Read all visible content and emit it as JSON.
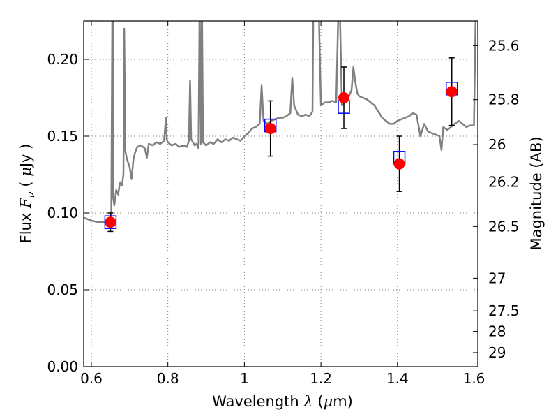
{
  "chart_data": {
    "type": "scatter",
    "xlabel": {
      "prefix": "Wavelength ",
      "symbol": "λ",
      "unit_open": " (",
      "unit_mu": "μ",
      "unit_rest": "m)"
    },
    "ylabel": {
      "prefix": "Flux ",
      "symbol": "F",
      "sub": "ν",
      "unit_open": " ( ",
      "unit_mu": "μ",
      "unit_rest": "Jy )"
    },
    "y2label": "Magnitude (AB)",
    "xlim": [
      0.58,
      1.61
    ],
    "ylim": [
      0.0,
      0.225
    ],
    "grid": true,
    "x_ticks": [
      0.6,
      0.8,
      1.0,
      1.2,
      1.4,
      1.6
    ],
    "x_tick_labels": [
      "0.6",
      "0.8",
      "1",
      "1.2",
      "1.4",
      "1.6"
    ],
    "y_ticks": [
      0.0,
      0.05,
      0.1,
      0.15,
      0.2
    ],
    "y_tick_labels": [
      "0.00",
      "0.05",
      "0.10",
      "0.15",
      "0.20"
    ],
    "y2_ticks": [
      {
        "mag": 25.6,
        "label": "25.6"
      },
      {
        "mag": 25.8,
        "label": "25.8"
      },
      {
        "mag": 26.0,
        "label": "26"
      },
      {
        "mag": 26.2,
        "label": "26.2"
      },
      {
        "mag": 26.5,
        "label": "26.5"
      },
      {
        "mag": 27.0,
        "label": "27"
      },
      {
        "mag": 27.5,
        "label": "27.5"
      },
      {
        "mag": 28.0,
        "label": "28"
      },
      {
        "mag": 29.0,
        "label": "29"
      }
    ],
    "observed": [
      {
        "x": 0.65,
        "y": 0.094,
        "err": 0.006
      },
      {
        "x": 1.068,
        "y": 0.155,
        "err": 0.018
      },
      {
        "x": 1.26,
        "y": 0.175,
        "err": 0.02
      },
      {
        "x": 1.405,
        "y": 0.132,
        "err": 0.018
      },
      {
        "x": 1.542,
        "y": 0.179,
        "err": 0.022
      }
    ],
    "model_points": [
      {
        "x": 0.65,
        "y": 0.094
      },
      {
        "x": 1.068,
        "y": 0.157
      },
      {
        "x": 1.26,
        "y": 0.169
      },
      {
        "x": 1.405,
        "y": 0.136
      },
      {
        "x": 1.542,
        "y": 0.181
      }
    ],
    "spectrum": [
      [
        0.58,
        0.097
      ],
      [
        0.6,
        0.095
      ],
      [
        0.62,
        0.094
      ],
      [
        0.64,
        0.094
      ],
      [
        0.65,
        0.093
      ],
      [
        0.652,
        0.092
      ],
      [
        0.655,
        0.24
      ],
      [
        0.656,
        0.24
      ],
      [
        0.657,
        0.11
      ],
      [
        0.66,
        0.105
      ],
      [
        0.665,
        0.115
      ],
      [
        0.67,
        0.112
      ],
      [
        0.675,
        0.12
      ],
      [
        0.68,
        0.118
      ],
      [
        0.684,
        0.125
      ],
      [
        0.686,
        0.22
      ],
      [
        0.689,
        0.14
      ],
      [
        0.693,
        0.135
      ],
      [
        0.7,
        0.13
      ],
      [
        0.705,
        0.122
      ],
      [
        0.71,
        0.135
      ],
      [
        0.715,
        0.14
      ],
      [
        0.72,
        0.143
      ],
      [
        0.73,
        0.144
      ],
      [
        0.74,
        0.142
      ],
      [
        0.745,
        0.136
      ],
      [
        0.75,
        0.145
      ],
      [
        0.76,
        0.144
      ],
      [
        0.77,
        0.146
      ],
      [
        0.78,
        0.145
      ],
      [
        0.79,
        0.147
      ],
      [
        0.795,
        0.162
      ],
      [
        0.797,
        0.148
      ],
      [
        0.8,
        0.146
      ],
      [
        0.81,
        0.144
      ],
      [
        0.82,
        0.145
      ],
      [
        0.83,
        0.143
      ],
      [
        0.84,
        0.144
      ],
      [
        0.85,
        0.143
      ],
      [
        0.855,
        0.147
      ],
      [
        0.858,
        0.186
      ],
      [
        0.861,
        0.148
      ],
      [
        0.87,
        0.144
      ],
      [
        0.875,
        0.145
      ],
      [
        0.88,
        0.142
      ],
      [
        0.883,
        0.24
      ],
      [
        0.886,
        0.145
      ],
      [
        0.889,
        0.24
      ],
      [
        0.892,
        0.146
      ],
      [
        0.9,
        0.144
      ],
      [
        0.91,
        0.146
      ],
      [
        0.92,
        0.145
      ],
      [
        0.93,
        0.148
      ],
      [
        0.94,
        0.146
      ],
      [
        0.95,
        0.148
      ],
      [
        0.96,
        0.147
      ],
      [
        0.97,
        0.149
      ],
      [
        0.98,
        0.148
      ],
      [
        0.99,
        0.147
      ],
      [
        1.0,
        0.15
      ],
      [
        1.01,
        0.152
      ],
      [
        1.02,
        0.155
      ],
      [
        1.03,
        0.156
      ],
      [
        1.04,
        0.158
      ],
      [
        1.045,
        0.183
      ],
      [
        1.05,
        0.16
      ],
      [
        1.06,
        0.158
      ],
      [
        1.07,
        0.16
      ],
      [
        1.08,
        0.161
      ],
      [
        1.09,
        0.162
      ],
      [
        1.1,
        0.162
      ],
      [
        1.11,
        0.163
      ],
      [
        1.12,
        0.165
      ],
      [
        1.125,
        0.188
      ],
      [
        1.13,
        0.17
      ],
      [
        1.14,
        0.164
      ],
      [
        1.15,
        0.163
      ],
      [
        1.16,
        0.164
      ],
      [
        1.17,
        0.163
      ],
      [
        1.178,
        0.166
      ],
      [
        1.18,
        0.23
      ],
      [
        1.186,
        0.225
      ],
      [
        1.19,
        0.24
      ],
      [
        1.195,
        0.225
      ],
      [
        1.2,
        0.17
      ],
      [
        1.21,
        0.172
      ],
      [
        1.22,
        0.172
      ],
      [
        1.23,
        0.173
      ],
      [
        1.24,
        0.172
      ],
      [
        1.245,
        0.226
      ],
      [
        1.25,
        0.226
      ],
      [
        1.255,
        0.17
      ],
      [
        1.26,
        0.171
      ],
      [
        1.27,
        0.174
      ],
      [
        1.28,
        0.18
      ],
      [
        1.285,
        0.195
      ],
      [
        1.29,
        0.185
      ],
      [
        1.295,
        0.178
      ],
      [
        1.3,
        0.176
      ],
      [
        1.31,
        0.175
      ],
      [
        1.32,
        0.174
      ],
      [
        1.33,
        0.172
      ],
      [
        1.34,
        0.17
      ],
      [
        1.35,
        0.166
      ],
      [
        1.36,
        0.162
      ],
      [
        1.37,
        0.16
      ],
      [
        1.38,
        0.158
      ],
      [
        1.39,
        0.158
      ],
      [
        1.4,
        0.16
      ],
      [
        1.41,
        0.161
      ],
      [
        1.42,
        0.162
      ],
      [
        1.43,
        0.163
      ],
      [
        1.44,
        0.165
      ],
      [
        1.45,
        0.164
      ],
      [
        1.46,
        0.15
      ],
      [
        1.47,
        0.158
      ],
      [
        1.48,
        0.153
      ],
      [
        1.49,
        0.152
      ],
      [
        1.5,
        0.151
      ],
      [
        1.51,
        0.15
      ],
      [
        1.515,
        0.141
      ],
      [
        1.52,
        0.156
      ],
      [
        1.53,
        0.154
      ],
      [
        1.54,
        0.156
      ],
      [
        1.55,
        0.158
      ],
      [
        1.56,
        0.16
      ],
      [
        1.57,
        0.158
      ],
      [
        1.58,
        0.156
      ],
      [
        1.59,
        0.157
      ],
      [
        1.6,
        0.157
      ],
      [
        1.605,
        0.24
      ]
    ],
    "colors": {
      "spectrum": "#808080",
      "observed": "#ff0000",
      "model": "#0000ff",
      "errorbar": "#000000",
      "grid": "#808080"
    }
  }
}
